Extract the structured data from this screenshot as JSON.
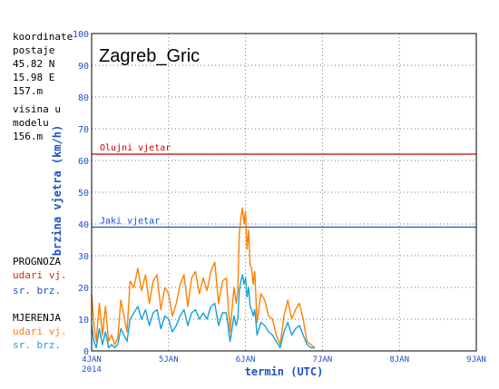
{
  "station": {
    "coord_label_1": "koordinate",
    "coord_label_2": "postaje",
    "lat": "45.82 N",
    "lon": "15.98 E",
    "elev": "157.m",
    "model_label_1": "visina u",
    "model_label_2": "modelu",
    "model_elev": "156.m"
  },
  "legend": {
    "forecast_title": "PROGNOZA",
    "forecast_gusts": "udari vj.",
    "forecast_mean": "sr. brz.",
    "measured_title": "MJERENJA",
    "measured_gusts": "udari vj.",
    "measured_mean": "sr. brz."
  },
  "colors": {
    "forecast_gusts": "#cc0000",
    "forecast_mean": "#1e50c8",
    "measured_gusts": "#ff8000",
    "measured_mean": "#14a0dc",
    "axis_label": "#1e50c8",
    "threshold_storm": "#cc0000",
    "threshold_strong": "#1e50c8"
  },
  "chart_data": {
    "type": "line",
    "title": "Zagreb_Gric",
    "xlabel": "termin (UTC)",
    "ylabel": "brzina vjetra (km/h)",
    "ylim": [
      0,
      100
    ],
    "yticks": [
      0,
      10,
      20,
      30,
      40,
      50,
      60,
      70,
      80,
      90,
      100
    ],
    "xlim": [
      0,
      5
    ],
    "x_unit": "days from 4JAN 2014 00 UTC",
    "xticks": [
      {
        "x": 0,
        "label": "4JAN",
        "sublabel": "2014"
      },
      {
        "x": 1,
        "label": "5JAN",
        "sublabel": ""
      },
      {
        "x": 2,
        "label": "6JAN",
        "sublabel": ""
      },
      {
        "x": 3,
        "label": "7JAN",
        "sublabel": ""
      },
      {
        "x": 4,
        "label": "8JAN",
        "sublabel": ""
      },
      {
        "x": 5,
        "label": "9JAN",
        "sublabel": ""
      }
    ],
    "grid": true,
    "thresholds": [
      {
        "name": "Olujni vjetar",
        "value": 62
      },
      {
        "name": "Jaki vjetar",
        "value": 39
      }
    ],
    "series": [
      {
        "name": "MJERENJA udari vj.",
        "x": [
          0.0,
          0.03,
          0.06,
          0.1,
          0.14,
          0.18,
          0.22,
          0.26,
          0.3,
          0.34,
          0.38,
          0.42,
          0.46,
          0.5,
          0.55,
          0.6,
          0.65,
          0.7,
          0.75,
          0.8,
          0.85,
          0.9,
          0.95,
          1.0,
          1.05,
          1.1,
          1.15,
          1.2,
          1.25,
          1.3,
          1.35,
          1.4,
          1.45,
          1.5,
          1.55,
          1.6,
          1.65,
          1.7,
          1.75,
          1.8,
          1.85,
          1.88,
          1.9,
          1.92,
          1.94,
          1.96,
          1.98,
          2.0,
          2.02,
          2.04,
          2.06,
          2.08,
          2.1,
          2.12,
          2.15,
          2.2,
          2.25,
          2.3,
          2.35,
          2.4,
          2.45,
          2.5,
          2.55,
          2.6,
          2.65,
          2.7,
          2.75,
          2.8,
          2.85,
          2.9
        ],
        "values": [
          18,
          8,
          3,
          15,
          5,
          14,
          3,
          5,
          2,
          4,
          16,
          11,
          6,
          22,
          20,
          26,
          19,
          24,
          15,
          22,
          24,
          13,
          20,
          18,
          11,
          15,
          21,
          24,
          14,
          23,
          25,
          18,
          23,
          19,
          25,
          28,
          15,
          22,
          23,
          6,
          20,
          15,
          19,
          37,
          42,
          45,
          40,
          44,
          32,
          38,
          27,
          26,
          21,
          25,
          9,
          18,
          16,
          11,
          10,
          5,
          2,
          11,
          16,
          10,
          13,
          15,
          10,
          3,
          2,
          1
        ]
      },
      {
        "name": "MJERENJA sr. brz.",
        "x": [
          0.0,
          0.03,
          0.06,
          0.1,
          0.14,
          0.18,
          0.22,
          0.26,
          0.3,
          0.34,
          0.38,
          0.42,
          0.46,
          0.5,
          0.55,
          0.6,
          0.65,
          0.7,
          0.75,
          0.8,
          0.85,
          0.9,
          0.95,
          1.0,
          1.05,
          1.1,
          1.15,
          1.2,
          1.25,
          1.3,
          1.35,
          1.4,
          1.45,
          1.5,
          1.55,
          1.6,
          1.65,
          1.7,
          1.75,
          1.8,
          1.85,
          1.88,
          1.9,
          1.92,
          1.94,
          1.96,
          1.98,
          2.0,
          2.02,
          2.04,
          2.06,
          2.08,
          2.1,
          2.12,
          2.15,
          2.2,
          2.25,
          2.3,
          2.35,
          2.4,
          2.45,
          2.5,
          2.55,
          2.6,
          2.65,
          2.7,
          2.75,
          2.8,
          2.85,
          2.9
        ],
        "values": [
          8,
          3,
          1,
          7,
          2,
          6,
          1,
          2,
          1,
          2,
          7,
          5,
          3,
          10,
          12,
          14,
          10,
          13,
          8,
          12,
          13,
          7,
          11,
          10,
          6,
          8,
          11,
          13,
          8,
          12,
          13,
          10,
          12,
          10,
          14,
          15,
          8,
          12,
          12,
          3,
          11,
          8,
          10,
          19,
          22,
          24,
          21,
          23,
          17,
          20,
          14,
          13,
          11,
          13,
          5,
          9,
          8,
          6,
          5,
          3,
          1,
          6,
          9,
          5,
          7,
          8,
          5,
          2,
          1,
          1
        ]
      }
    ]
  }
}
